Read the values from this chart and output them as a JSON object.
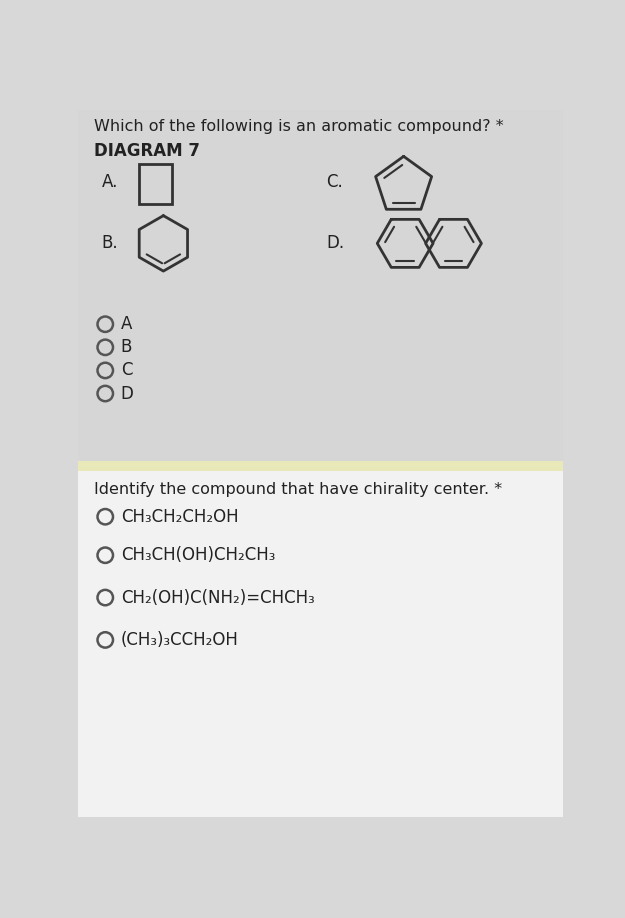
{
  "bg_top": "#d8d8d8",
  "bg_bottom": "#f0f0f0",
  "separator_color": "#e8e8c0",
  "title1": "Which of the following is an aromatic compound? *",
  "diagram_label": "DIAGRAM 7",
  "radio_options_1": [
    "A",
    "B",
    "C",
    "D"
  ],
  "title2": "Identify the compound that have chirality center. *",
  "radio_options_2": [
    "CH₃CH₂CH₂OH",
    "CH₃CH(OH)CH₂CH₃",
    "CH₂(OH)C(NH₂)=CHCH₃",
    "(CH₃)₃CCH₂OH"
  ],
  "text_color": "#222222",
  "mol_color": "#333333"
}
